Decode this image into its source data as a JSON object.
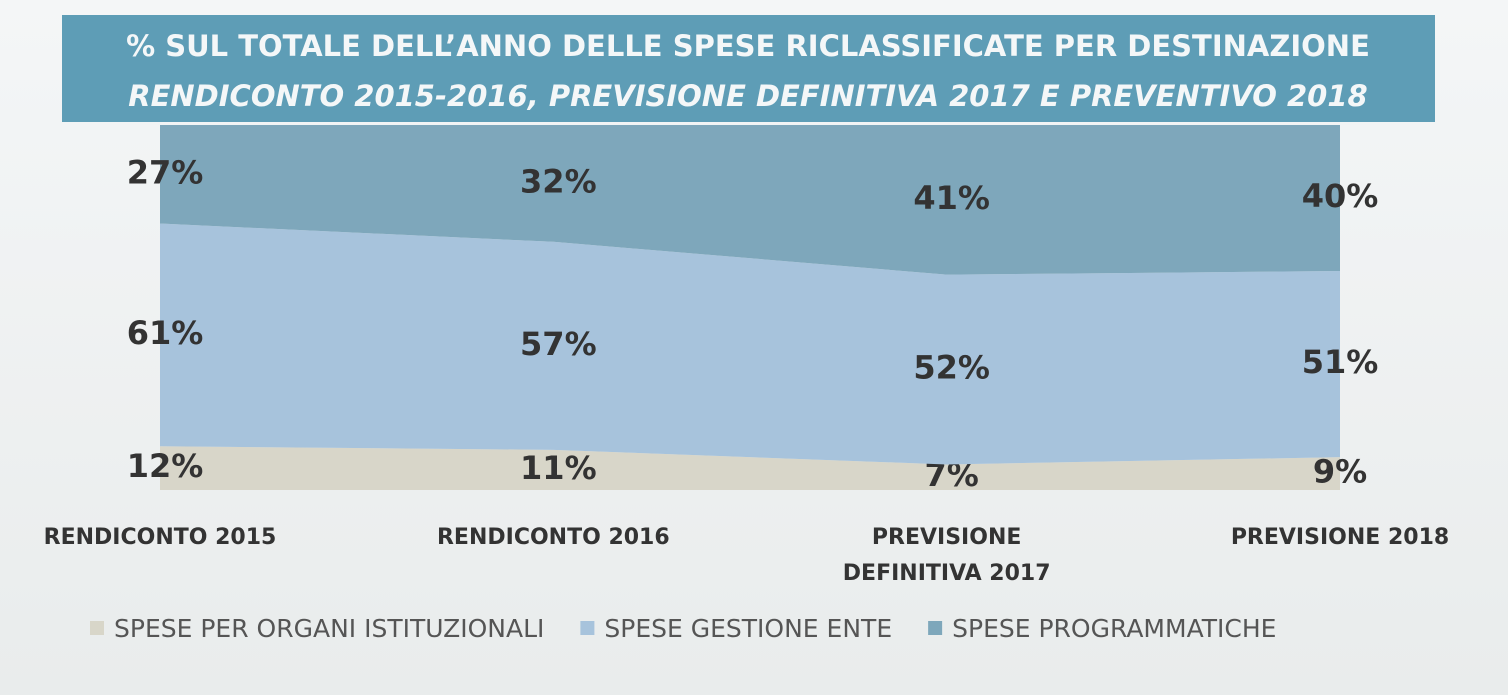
{
  "chart_data": {
    "type": "stacked_area",
    "title": "% SUL TOTALE DELL’ANNO DELLE SPESE RICLASSIFICATE PER DESTINAZIONE",
    "subtitle": "RENDICONTO 2015-2016, PREVISIONE DEFINITIVA 2017 E PREVENTIVO 2018",
    "categories": [
      "RENDICONTO 2015",
      "RENDICONTO 2016",
      "PREVISIONE DEFINITIVA 2017",
      "PREVISIONE 2018"
    ],
    "ylim": [
      0,
      100
    ],
    "series": [
      {
        "name": "SPESE PER ORGANI ISTITUZIONALI",
        "color": "#d8d6c9",
        "values": [
          12,
          11,
          7,
          9
        ],
        "value_labels": [
          "12%",
          "11%",
          "7%",
          "9%"
        ]
      },
      {
        "name": "SPESE GESTIONE ENTE",
        "color": "#a7c3dc",
        "values": [
          61,
          57,
          52,
          51
        ],
        "value_labels": [
          "61%",
          "57%",
          "52%",
          "51%"
        ]
      },
      {
        "name": "SPESE PROGRAMMATICHE",
        "color": "#7ea7bb",
        "values": [
          27,
          32,
          41,
          40
        ],
        "value_labels": [
          "27%",
          "32%",
          "41%",
          "40%"
        ]
      }
    ],
    "legend": "bottom"
  }
}
